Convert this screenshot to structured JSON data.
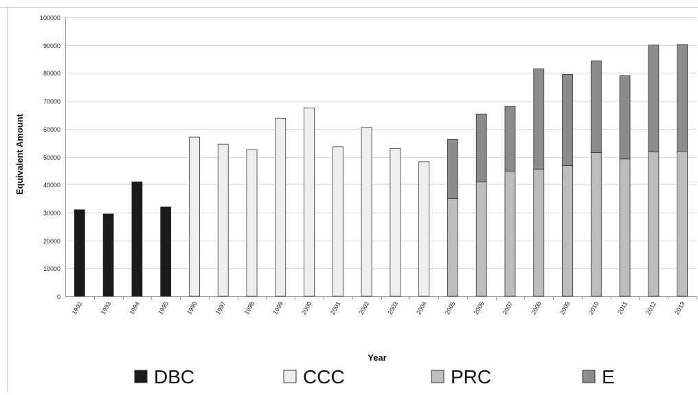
{
  "chart_data": {
    "type": "bar",
    "stacked": true,
    "xlabel": "Year",
    "ylabel": "Equivalent Amount",
    "ylim": [
      0,
      100000
    ],
    "yticks": [
      0,
      10000,
      20000,
      30000,
      40000,
      50000,
      60000,
      70000,
      80000,
      90000,
      100000
    ],
    "grid": true,
    "legend_position": "bottom",
    "categories": [
      "1992",
      "1993",
      "1994",
      "1995",
      "1996",
      "1997",
      "1998",
      "1999",
      "2000",
      "2001",
      "2002",
      "2003",
      "2004",
      "2005",
      "2006",
      "2007",
      "2008",
      "2009",
      "2010",
      "2011",
      "2012",
      "2013"
    ],
    "series": [
      {
        "name": "DBC",
        "color": "#1a1a1a",
        "values": [
          31000,
          29500,
          41000,
          32000,
          0,
          0,
          0,
          0,
          0,
          0,
          0,
          0,
          0,
          0,
          0,
          0,
          0,
          0,
          0,
          0,
          0,
          0
        ]
      },
      {
        "name": "CCC",
        "color": "#eeeeee",
        "values": [
          0,
          0,
          0,
          0,
          57000,
          54500,
          52500,
          63800,
          67500,
          53600,
          60500,
          53000,
          48200,
          0,
          0,
          0,
          0,
          0,
          0,
          0,
          0,
          0
        ]
      },
      {
        "name": "PRC",
        "color": "#bdbdbd",
        "values": [
          0,
          0,
          0,
          0,
          0,
          0,
          0,
          0,
          0,
          0,
          0,
          0,
          0,
          35000,
          41000,
          44800,
          45500,
          46800,
          51500,
          49200,
          51700,
          52000
        ]
      },
      {
        "name": "E",
        "color": "#8c8c8c",
        "values": [
          0,
          0,
          0,
          0,
          0,
          0,
          0,
          0,
          0,
          0,
          0,
          0,
          0,
          21200,
          24300,
          23200,
          36000,
          32700,
          32800,
          29800,
          38300,
          38200
        ]
      }
    ]
  }
}
